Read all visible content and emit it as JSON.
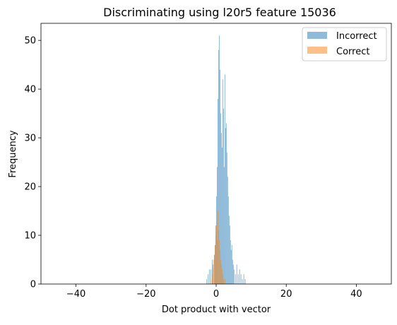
{
  "chart_data": {
    "type": "bar",
    "title": "Discriminating using l20r5 feature 15036",
    "xlabel": "Dot product with vector",
    "ylabel": "Frequency",
    "xlim": [
      -50,
      50
    ],
    "ylim": [
      0,
      53.5
    ],
    "xticks": [
      -40,
      -20,
      0,
      20,
      40
    ],
    "xtick_labels": [
      "−40",
      "−20",
      "0",
      "20",
      "40"
    ],
    "yticks": [
      0,
      10,
      20,
      30,
      40,
      50
    ],
    "ytick_labels": [
      "0",
      "10",
      "20",
      "30",
      "40",
      "50"
    ],
    "grid": false,
    "legend_position": "top-right",
    "bin_width": 0.2,
    "series": [
      {
        "name": "Incorrect",
        "color": "#1f77b4",
        "alpha": 0.5,
        "bins": [
          [
            -2.8,
            1
          ],
          [
            -2.4,
            2
          ],
          [
            -2.0,
            3
          ],
          [
            -1.6,
            3
          ],
          [
            -1.2,
            5
          ],
          [
            -1.0,
            4
          ],
          [
            -0.6,
            6
          ],
          [
            -0.4,
            8
          ],
          [
            -0.2,
            12
          ],
          [
            0.0,
            18
          ],
          [
            0.2,
            24
          ],
          [
            0.4,
            38
          ],
          [
            0.6,
            48
          ],
          [
            0.8,
            51
          ],
          [
            1.0,
            44
          ],
          [
            1.2,
            35
          ],
          [
            1.4,
            31
          ],
          [
            1.6,
            28
          ],
          [
            1.8,
            42
          ],
          [
            2.0,
            36
          ],
          [
            2.2,
            24
          ],
          [
            2.4,
            43
          ],
          [
            2.6,
            32
          ],
          [
            2.8,
            33
          ],
          [
            3.0,
            27
          ],
          [
            3.2,
            22
          ],
          [
            3.4,
            18
          ],
          [
            3.6,
            14
          ],
          [
            3.8,
            12
          ],
          [
            4.0,
            9
          ],
          [
            4.2,
            7
          ],
          [
            4.4,
            8
          ],
          [
            4.6,
            5
          ],
          [
            4.8,
            4
          ],
          [
            5.0,
            3
          ],
          [
            5.4,
            2
          ],
          [
            5.8,
            4
          ],
          [
            6.2,
            2
          ],
          [
            6.6,
            3
          ],
          [
            7.0,
            2
          ],
          [
            7.4,
            1
          ],
          [
            7.8,
            2
          ],
          [
            8.2,
            1
          ]
        ]
      },
      {
        "name": "Correct",
        "color": "#ff7f0e",
        "alpha": 0.5,
        "bins": [
          [
            -1.6,
            1
          ],
          [
            -1.2,
            2
          ],
          [
            -1.0,
            3
          ],
          [
            -0.8,
            5
          ],
          [
            -0.6,
            6
          ],
          [
            -0.4,
            8
          ],
          [
            -0.2,
            10
          ],
          [
            0.0,
            12
          ],
          [
            0.2,
            9
          ],
          [
            0.4,
            15
          ],
          [
            0.6,
            11
          ],
          [
            0.8,
            9
          ],
          [
            1.0,
            7
          ],
          [
            1.2,
            5
          ],
          [
            1.4,
            4
          ],
          [
            1.6,
            3
          ],
          [
            1.8,
            2
          ],
          [
            2.0,
            1
          ],
          [
            2.4,
            1
          ]
        ]
      }
    ]
  }
}
